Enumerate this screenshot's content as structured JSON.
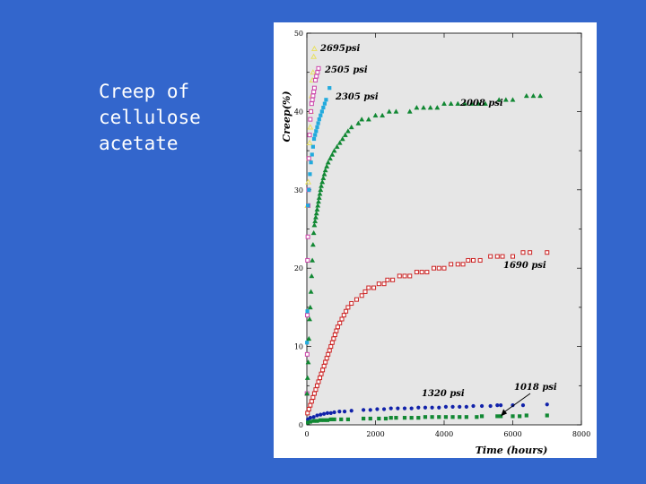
{
  "slide": {
    "title": "Creep of\ncellulose\nacetate"
  },
  "colors": {
    "background": "#3366cc",
    "plot_area": "#e6e6e6",
    "s2695": "#e8e060",
    "s2505": "#cc44aa",
    "s2305": "#22aadd",
    "s2008": "#118833",
    "s1690": "#cc2222",
    "s1320": "#1122aa",
    "s1018": "#118833"
  },
  "chart_data": {
    "type": "scatter",
    "xlabel": "Time (hours)",
    "ylabel": "Creep(%)",
    "xlim": [
      0,
      8000
    ],
    "ylim": [
      0,
      50
    ],
    "xticks": [
      0,
      2000,
      4000,
      6000,
      8000
    ],
    "yticks": [
      0,
      10,
      20,
      30,
      40,
      50
    ],
    "grid": false,
    "series": [
      {
        "name": "2695psi",
        "marker": "triangle-open",
        "color": "#e8e060",
        "x": [
          20,
          40,
          60,
          80,
          100,
          120,
          140,
          160,
          180,
          200,
          220
        ],
        "y": [
          28,
          31,
          34,
          36,
          38,
          40,
          42,
          44,
          45,
          47,
          48
        ]
      },
      {
        "name": "2505 psi",
        "marker": "square-open",
        "color": "#cc44aa",
        "x": [
          5,
          10,
          15,
          20,
          30,
          40,
          50,
          60,
          80,
          100,
          120,
          140,
          160,
          180,
          200,
          220,
          250,
          280,
          310,
          340
        ],
        "y": [
          4,
          9,
          14,
          21,
          24,
          28,
          30,
          34,
          37,
          39,
          40,
          41,
          41.5,
          42,
          42.5,
          43,
          44,
          44.5,
          45,
          45.5
        ]
      },
      {
        "name": "2305 psi",
        "marker": "square",
        "color": "#22aadd",
        "x": [
          5,
          15,
          30,
          60,
          90,
          120,
          150,
          180,
          210,
          240,
          270,
          300,
          330,
          360,
          400,
          440,
          480,
          520,
          560,
          660
        ],
        "y": [
          10.5,
          14.5,
          28,
          30,
          32,
          33.5,
          34.5,
          35.5,
          36.5,
          37,
          37.5,
          38,
          38.5,
          39,
          39.5,
          40,
          40.5,
          41,
          41.5,
          43
        ]
      },
      {
        "name": "2008 psi",
        "marker": "triangle",
        "color": "#118833",
        "x": [
          5,
          20,
          40,
          60,
          80,
          100,
          120,
          140,
          160,
          180,
          200,
          220,
          240,
          260,
          280,
          300,
          320,
          340,
          360,
          380,
          400,
          420,
          450,
          480,
          510,
          540,
          580,
          620,
          680,
          740,
          800,
          880,
          960,
          1040,
          1120,
          1200,
          1300,
          1500,
          1600,
          1800,
          2000,
          2200,
          2400,
          2600,
          3000,
          3200,
          3400,
          3600,
          3800,
          4000,
          4200,
          4400,
          4600,
          4800,
          5000,
          5200,
          5600,
          5800,
          6000,
          6400,
          6600,
          6800
        ],
        "y": [
          4,
          6,
          8,
          11,
          13.5,
          15,
          17,
          19,
          21,
          23,
          24.5,
          25.5,
          26,
          26.5,
          27,
          27.5,
          28,
          28.5,
          29,
          29.5,
          30,
          30.5,
          31,
          31.5,
          32,
          32.5,
          33,
          33.5,
          34,
          34.5,
          35,
          35.5,
          36,
          36.5,
          37,
          37.5,
          38,
          38.5,
          39,
          39,
          39.5,
          39.5,
          40,
          40,
          40,
          40.5,
          40.5,
          40.5,
          40.5,
          41,
          41,
          41,
          41,
          41,
          41,
          41,
          41.5,
          41.5,
          41.5,
          42,
          42,
          42
        ]
      },
      {
        "name": "1690 psi",
        "marker": "square-open",
        "color": "#cc2222",
        "x": [
          20,
          60,
          100,
          140,
          180,
          220,
          260,
          300,
          340,
          380,
          420,
          460,
          500,
          540,
          580,
          620,
          660,
          700,
          740,
          780,
          820,
          860,
          900,
          960,
          1020,
          1080,
          1140,
          1200,
          1300,
          1450,
          1600,
          1700,
          1800,
          1950,
          2100,
          2250,
          2350,
          2500,
          2700,
          2850,
          3000,
          3200,
          3350,
          3500,
          3700,
          3850,
          4000,
          4200,
          4400,
          4550,
          4700,
          4850,
          5050,
          5350,
          5550,
          5700,
          6000,
          6300,
          6500,
          7000
        ],
        "y": [
          1.5,
          2,
          2.5,
          3,
          3.5,
          4,
          4.5,
          5,
          5.5,
          6,
          6.5,
          7,
          7.5,
          8,
          8.5,
          9,
          9.5,
          10,
          10.5,
          11,
          11.5,
          12,
          12.5,
          13,
          13.5,
          14,
          14.5,
          15,
          15.5,
          16,
          16.5,
          17,
          17.5,
          17.5,
          18,
          18,
          18.5,
          18.5,
          19,
          19,
          19,
          19.5,
          19.5,
          19.5,
          20,
          20,
          20,
          20.5,
          20.5,
          20.5,
          21,
          21,
          21,
          21.5,
          21.5,
          21.5,
          21.5,
          22,
          22,
          22
        ]
      },
      {
        "name": "1320 psi",
        "marker": "circle",
        "color": "#1122aa",
        "x": [
          30,
          100,
          200,
          300,
          400,
          500,
          600,
          700,
          800,
          950,
          1100,
          1300,
          1650,
          1850,
          2050,
          2250,
          2450,
          2650,
          2850,
          3050,
          3250,
          3450,
          3650,
          3850,
          4050,
          4250,
          4450,
          4650,
          4850,
          5100,
          5350,
          5550,
          5650,
          6000,
          6300,
          7000
        ],
        "y": [
          0.7,
          0.9,
          1.0,
          1.2,
          1.3,
          1.4,
          1.5,
          1.5,
          1.6,
          1.7,
          1.7,
          1.8,
          1.9,
          1.9,
          2.0,
          2.0,
          2.1,
          2.1,
          2.1,
          2.1,
          2.2,
          2.2,
          2.2,
          2.2,
          2.3,
          2.3,
          2.3,
          2.3,
          2.4,
          2.4,
          2.4,
          2.5,
          2.5,
          2.5,
          2.5,
          2.6
        ]
      },
      {
        "name": "1018 psi",
        "marker": "square",
        "color": "#118833",
        "x": [
          30,
          100,
          200,
          300,
          400,
          500,
          600,
          700,
          800,
          1000,
          1200,
          1650,
          1850,
          2100,
          2300,
          2450,
          2600,
          2850,
          3050,
          3250,
          3450,
          3650,
          3850,
          4050,
          4250,
          4450,
          4650,
          4950,
          5100,
          5550,
          5650,
          6000,
          6200,
          6400,
          7000
        ],
        "y": [
          0.3,
          0.4,
          0.5,
          0.5,
          0.6,
          0.6,
          0.6,
          0.7,
          0.7,
          0.7,
          0.7,
          0.8,
          0.8,
          0.8,
          0.8,
          0.9,
          0.9,
          0.9,
          0.9,
          0.9,
          1.0,
          1.0,
          1.0,
          1.0,
          1.0,
          1.0,
          1.0,
          1.0,
          1.1,
          1.1,
          1.1,
          1.1,
          1.1,
          1.2,
          1.2
        ]
      }
    ]
  }
}
